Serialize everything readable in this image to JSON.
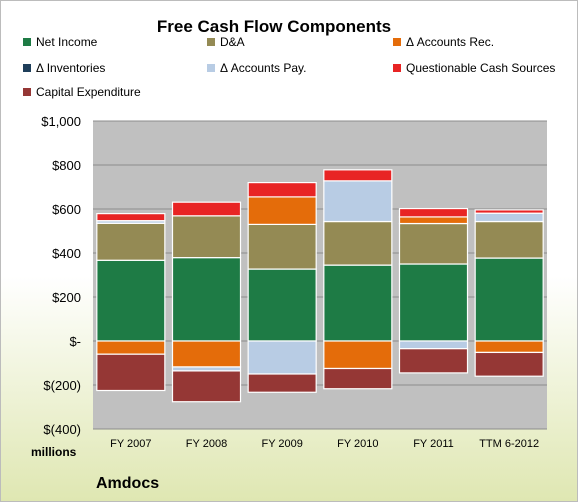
{
  "chart_data": {
    "type": "bar",
    "stacked": true,
    "title": "Free Cash Flow Components",
    "units_label": "millions",
    "company": "Amdocs",
    "legend_position": "top",
    "grid": true,
    "ylim": [
      -400,
      1000
    ],
    "yticks": [
      -400,
      -200,
      0,
      200,
      400,
      600,
      800,
      1000
    ],
    "ytick_labels": [
      "$(400)",
      "$(200)",
      "$-",
      "$200",
      "$400",
      "$600",
      "$800",
      "$1,000"
    ],
    "categories": [
      "FY 2007",
      "FY 2008",
      "FY 2009",
      "FY 2010",
      "FY 2011",
      "TTM 6-2012"
    ],
    "series": [
      {
        "name": "Net Income",
        "color": "#1e7b45",
        "values": [
          367,
          379,
          327,
          345,
          350,
          377
        ]
      },
      {
        "name": "D&A",
        "color": "#948a54",
        "values": [
          168,
          190,
          203,
          198,
          184,
          166
        ]
      },
      {
        "name": "Δ Accounts Rec.",
        "color": "#e46c0a",
        "values": [
          -60,
          -118,
          125,
          -125,
          30,
          -52
        ]
      },
      {
        "name": "Δ Inventories",
        "color": "#1f3e5a",
        "values": [
          0,
          0,
          0,
          0,
          0,
          0
        ]
      },
      {
        "name": "Δ Accounts Pay.",
        "color": "#b8cce4",
        "values": [
          12,
          -18,
          -150,
          185,
          -35,
          38
        ]
      },
      {
        "name": "Questionable Cash Sources",
        "color": "#e82424",
        "values": [
          32,
          62,
          65,
          50,
          38,
          15
        ]
      },
      {
        "name": "Capital Expenditure",
        "color": "#953735",
        "values": [
          -165,
          -140,
          -83,
          -92,
          -110,
          -108
        ]
      }
    ]
  }
}
